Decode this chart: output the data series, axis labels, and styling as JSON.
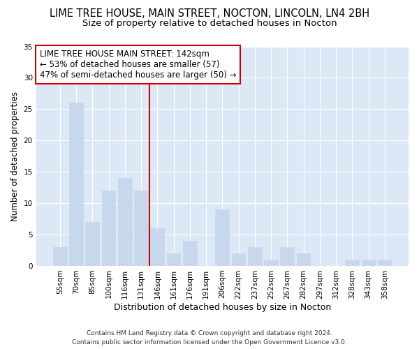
{
  "title": "LIME TREE HOUSE, MAIN STREET, NOCTON, LINCOLN, LN4 2BH",
  "subtitle": "Size of property relative to detached houses in Nocton",
  "xlabel": "Distribution of detached houses by size in Nocton",
  "ylabel": "Number of detached properties",
  "categories": [
    "55sqm",
    "70sqm",
    "85sqm",
    "100sqm",
    "116sqm",
    "131sqm",
    "146sqm",
    "161sqm",
    "176sqm",
    "191sqm",
    "206sqm",
    "222sqm",
    "237sqm",
    "252sqm",
    "267sqm",
    "282sqm",
    "297sqm",
    "312sqm",
    "328sqm",
    "343sqm",
    "358sqm"
  ],
  "values": [
    3,
    26,
    7,
    12,
    14,
    12,
    6,
    2,
    4,
    0,
    9,
    2,
    3,
    1,
    3,
    2,
    0,
    0,
    1,
    1,
    1
  ],
  "bar_color": "#c8d8ec",
  "bar_edge_color": "#c8d8ec",
  "vline_color": "#cc0000",
  "vline_x": 5.5,
  "annotation_text": "LIME TREE HOUSE MAIN STREET: 142sqm\n← 53% of detached houses are smaller (57)\n47% of semi-detached houses are larger (50) →",
  "annotation_box_facecolor": "#ffffff",
  "annotation_box_edgecolor": "#cc0000",
  "ylim": [
    0,
    35
  ],
  "yticks": [
    0,
    5,
    10,
    15,
    20,
    25,
    30,
    35
  ],
  "fig_bg_color": "#ffffff",
  "plot_bg_color": "#dce8f5",
  "grid_color": "#ffffff",
  "footer_line1": "Contains HM Land Registry data © Crown copyright and database right 2024.",
  "footer_line2": "Contains public sector information licensed under the Open Government Licence v3.0.",
  "title_fontsize": 10.5,
  "subtitle_fontsize": 9.5,
  "xlabel_fontsize": 9,
  "ylabel_fontsize": 8.5,
  "tick_fontsize": 7.5,
  "annotation_fontsize": 8.5,
  "footer_fontsize": 6.5
}
